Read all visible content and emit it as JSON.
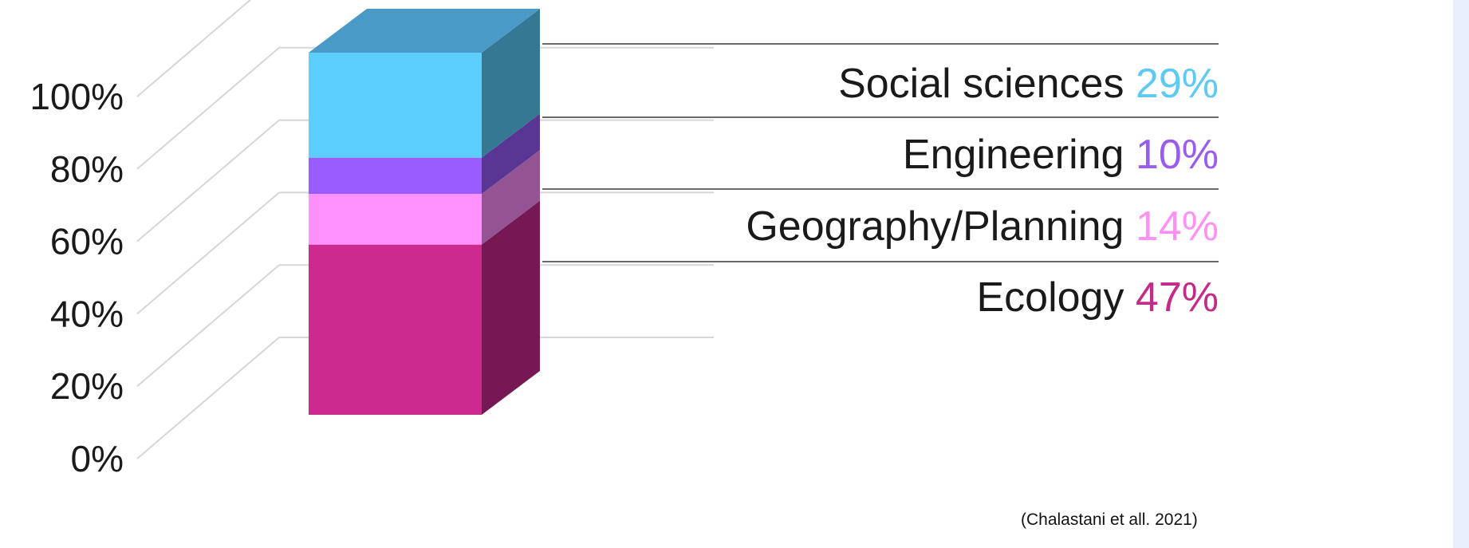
{
  "chart_data": {
    "type": "bar",
    "subtype": "stacked-3d-single",
    "y_ticks": [
      "0%",
      "20%",
      "40%",
      "60%",
      "80%",
      "100%"
    ],
    "ylim": [
      0,
      100
    ],
    "series": [
      {
        "name": "Ecology",
        "value": 47,
        "label": "47%",
        "color": "#cc2a8f",
        "label_color": "#c42a87"
      },
      {
        "name": "Geography/Planning",
        "value": 14,
        "label": "14%",
        "color": "#ff91ff",
        "label_color": "#ff91f5"
      },
      {
        "name": "Engineering",
        "value": 10,
        "label": "10%",
        "color": "#9a5cff",
        "label_color": "#9a5cf0"
      },
      {
        "name": "Social sciences",
        "value": 29,
        "label": "29%",
        "color": "#5ccfff",
        "label_color": "#5ccaf2"
      }
    ],
    "grid": true
  },
  "citation": "(Chalastani et all. 2021)"
}
